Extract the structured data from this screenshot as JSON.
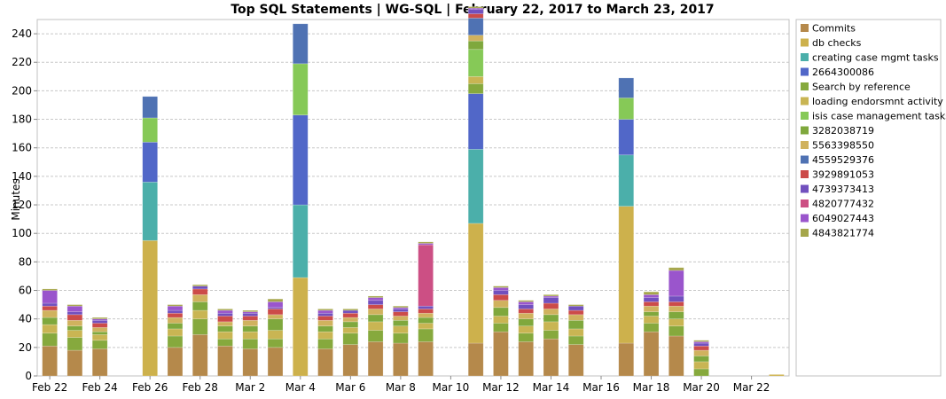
{
  "chart_data": {
    "type": "bar",
    "stacked": true,
    "title": "Top SQL Statements | WG-SQL | February 22, 2017 to March 23, 2017",
    "xlabel": "",
    "ylabel": "Minutes",
    "ylim": [
      0,
      250
    ],
    "yticks": [
      0,
      20,
      40,
      60,
      80,
      100,
      120,
      140,
      160,
      180,
      200,
      220,
      240
    ],
    "grid": true,
    "legend_position": "right",
    "categories": [
      "Feb 22",
      "Feb 23",
      "Feb 24",
      "Feb 25",
      "Feb 26",
      "Feb 27",
      "Feb 28",
      "Mar 1",
      "Mar 2",
      "Mar 3",
      "Mar 4",
      "Mar 5",
      "Mar 6",
      "Mar 7",
      "Mar 8",
      "Mar 9",
      "Mar 10",
      "Mar 11",
      "Mar 12",
      "Mar 13",
      "Mar 14",
      "Mar 15",
      "Mar 16",
      "Mar 17",
      "Mar 18",
      "Mar 19",
      "Mar 20",
      "Mar 21",
      "Mar 22",
      "Mar 23"
    ],
    "tick_labels": [
      {
        "index": 0,
        "label": "Feb 22"
      },
      {
        "index": 2,
        "label": "Feb 24"
      },
      {
        "index": 4,
        "label": "Feb 26"
      },
      {
        "index": 6,
        "label": "Feb 28"
      },
      {
        "index": 8,
        "label": "Mar 2"
      },
      {
        "index": 10,
        "label": "Mar 4"
      },
      {
        "index": 12,
        "label": "Mar 6"
      },
      {
        "index": 14,
        "label": "Mar 8"
      },
      {
        "index": 16,
        "label": "Mar 10"
      },
      {
        "index": 18,
        "label": "Mar 12"
      },
      {
        "index": 20,
        "label": "Mar 14"
      },
      {
        "index": 22,
        "label": "Mar 16"
      },
      {
        "index": 24,
        "label": "Mar 18"
      },
      {
        "index": 26,
        "label": "Mar 20"
      },
      {
        "index": 28,
        "label": "Mar 22"
      }
    ],
    "series": [
      {
        "name": "Commits",
        "color": "#b5894b",
        "values": [
          21,
          18,
          19,
          0,
          0,
          20,
          29,
          21,
          19,
          20,
          0,
          19,
          22,
          24,
          23,
          24,
          0,
          23,
          31,
          24,
          26,
          22,
          0,
          23,
          31,
          28,
          0,
          0,
          0,
          0
        ]
      },
      {
        "name": "db checks",
        "color": "#cdb14c",
        "values": [
          0,
          0,
          0,
          0,
          95,
          0,
          0,
          0,
          0,
          0,
          69,
          0,
          0,
          0,
          0,
          0,
          0,
          84,
          0,
          0,
          0,
          0,
          0,
          96,
          0,
          0,
          0,
          0,
          0,
          1
        ]
      },
      {
        "name": "creating case mgmt tasks",
        "color": "#4bafaa",
        "values": [
          0,
          0,
          0,
          0,
          41,
          0,
          0,
          0,
          0,
          0,
          51,
          0,
          0,
          0,
          0,
          0,
          0,
          52,
          0,
          0,
          0,
          0,
          0,
          36,
          0,
          0,
          0,
          0,
          0,
          0
        ]
      },
      {
        "name": "2664300086",
        "color": "#5167c8",
        "values": [
          0,
          0,
          0,
          0,
          28,
          0,
          0,
          0,
          0,
          0,
          63,
          0,
          0,
          0,
          0,
          0,
          0,
          39,
          0,
          0,
          0,
          0,
          0,
          25,
          0,
          0,
          0,
          0,
          0,
          0
        ]
      },
      {
        "name": "Search by reference",
        "color": "#86a93d",
        "values": [
          9,
          9,
          6,
          0,
          0,
          8,
          11,
          5,
          7,
          6,
          0,
          7,
          8,
          8,
          7,
          9,
          0,
          7,
          6,
          6,
          6,
          6,
          0,
          0,
          6,
          7,
          5,
          0,
          0,
          0
        ]
      },
      {
        "name": "loading endorsmnt activity log",
        "color": "#c9b553",
        "values": [
          6,
          5,
          4,
          0,
          0,
          5,
          6,
          5,
          5,
          6,
          0,
          5,
          4,
          6,
          5,
          4,
          0,
          5,
          5,
          5,
          6,
          5,
          0,
          0,
          5,
          5,
          5,
          0,
          0,
          0
        ]
      },
      {
        "name": "isis case management tasks",
        "color": "#86c957",
        "values": [
          0,
          0,
          0,
          0,
          17,
          0,
          0,
          0,
          0,
          0,
          36,
          0,
          0,
          0,
          0,
          0,
          0,
          19,
          0,
          0,
          0,
          0,
          0,
          15,
          0,
          0,
          0,
          0,
          0,
          0
        ]
      },
      {
        "name": "3282038719",
        "color": "#7fa83d",
        "values": [
          5,
          3,
          2,
          0,
          0,
          4,
          6,
          4,
          4,
          8,
          0,
          4,
          4,
          5,
          4,
          4,
          0,
          6,
          6,
          5,
          5,
          6,
          0,
          0,
          3,
          5,
          4,
          0,
          0,
          0
        ]
      },
      {
        "name": "5563398550",
        "color": "#d0b25e",
        "values": [
          5,
          4,
          3,
          0,
          0,
          4,
          5,
          3,
          4,
          3,
          0,
          4,
          3,
          4,
          3,
          3,
          0,
          4,
          5,
          4,
          4,
          4,
          0,
          0,
          4,
          4,
          4,
          0,
          0,
          0
        ]
      },
      {
        "name": "4559529376",
        "color": "#4f72b3",
        "values": [
          0,
          0,
          0,
          0,
          15,
          0,
          0,
          0,
          0,
          0,
          28,
          0,
          0,
          0,
          0,
          0,
          0,
          12,
          0,
          0,
          0,
          0,
          0,
          14,
          0,
          0,
          0,
          0,
          0,
          0
        ]
      },
      {
        "name": "3929891053",
        "color": "#cc4b49",
        "values": [
          3,
          4,
          3,
          0,
          0,
          3,
          4,
          4,
          3,
          4,
          0,
          3,
          3,
          3,
          3,
          3,
          0,
          3,
          4,
          3,
          4,
          3,
          0,
          0,
          3,
          3,
          3,
          0,
          0,
          0
        ]
      },
      {
        "name": "4739373413",
        "color": "#7150be",
        "values": [
          2,
          2,
          2,
          0,
          0,
          2,
          2,
          2,
          2,
          1,
          0,
          2,
          2,
          3,
          2,
          2,
          0,
          3,
          3,
          3,
          4,
          3,
          0,
          0,
          3,
          4,
          2,
          0,
          0,
          0
        ]
      },
      {
        "name": "4820777432",
        "color": "#cc4f84",
        "values": [
          0,
          0,
          0,
          0,
          0,
          0,
          0,
          0,
          0,
          0,
          0,
          0,
          0,
          0,
          0,
          43,
          0,
          0,
          0,
          0,
          0,
          0,
          0,
          0,
          0,
          0,
          0,
          0,
          0,
          0
        ]
      },
      {
        "name": "6049027443",
        "color": "#9a55cc",
        "values": [
          9,
          4,
          1,
          0,
          0,
          3,
          0,
          2,
          1,
          4,
          0,
          2,
          0,
          2,
          1,
          1,
          0,
          1,
          2,
          2,
          1,
          0,
          0,
          0,
          2,
          18,
          1,
          0,
          0,
          0
        ]
      },
      {
        "name": "4843821774",
        "color": "#a5a64b",
        "values": [
          1,
          1,
          1,
          0,
          0,
          1,
          1,
          1,
          1,
          2,
          0,
          1,
          1,
          1,
          1,
          1,
          0,
          1,
          1,
          1,
          1,
          1,
          0,
          0,
          2,
          2,
          1,
          0,
          0,
          0
        ]
      }
    ]
  }
}
